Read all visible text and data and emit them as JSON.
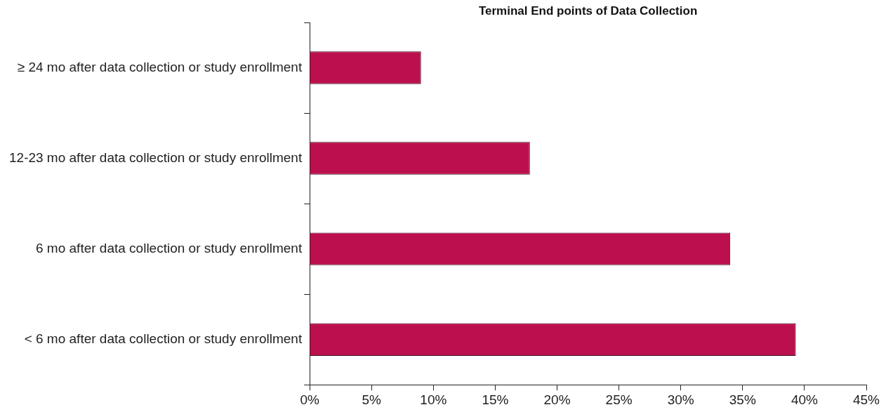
{
  "chart_data": {
    "type": "bar",
    "orientation": "horizontal",
    "title": "Terminal End points of Data Collection",
    "categories": [
      "≥ 24 mo after data collection or study enrollment",
      "12-23 mo after data collection or study enrollment",
      "6 mo after data collection or study enrollment",
      "< 6 mo after data collection or study enrollment"
    ],
    "values": [
      9,
      17.8,
      34,
      39.3
    ],
    "color": "#bc0f4e",
    "xlim": [
      0,
      45
    ],
    "xticks": [
      {
        "value": 0,
        "label": "0%"
      },
      {
        "value": 5,
        "label": "5%"
      },
      {
        "value": 10,
        "label": "10%"
      },
      {
        "value": 15,
        "label": "15%"
      },
      {
        "value": 20,
        "label": "20%"
      },
      {
        "value": 25,
        "label": "25%"
      },
      {
        "value": 30,
        "label": "30%"
      },
      {
        "value": 35,
        "label": "35%"
      },
      {
        "value": 40,
        "label": "40%"
      },
      {
        "value": 45,
        "label": "45%"
      }
    ],
    "grid": false,
    "legend": false
  }
}
